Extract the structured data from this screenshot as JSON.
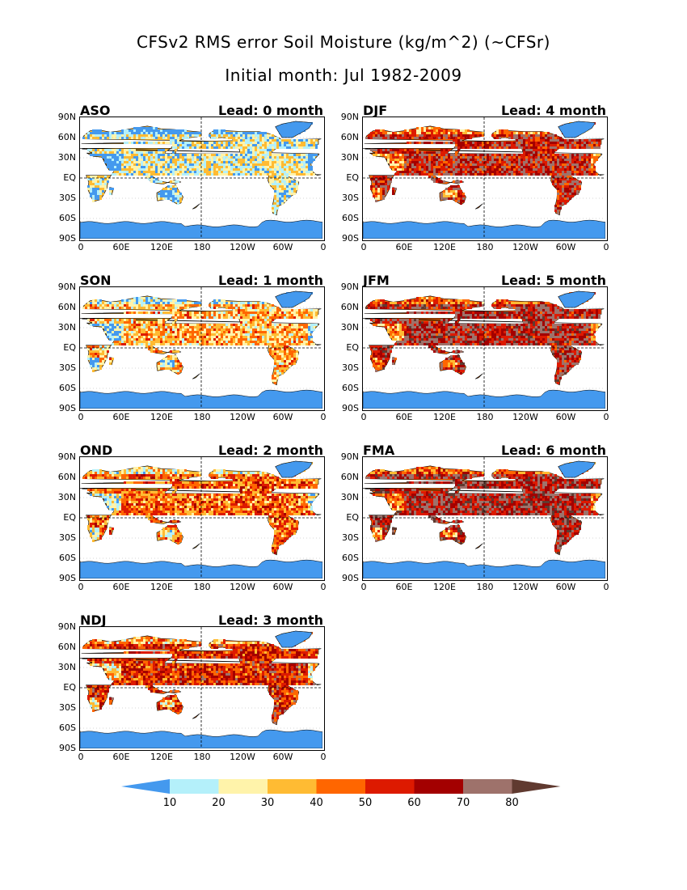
{
  "title_line1": "CFSv2 RMS error Soil Moisture (kg/m^2) (~CFSr)",
  "title_line2": "Initial month: Jul 1982-2009",
  "y_tick_labels": [
    "90N",
    "60N",
    "30N",
    "EQ",
    "30S",
    "60S",
    "90S"
  ],
  "x_tick_labels": [
    "0",
    "60E",
    "120E",
    "180",
    "120W",
    "60W",
    "0"
  ],
  "panels": [
    {
      "season": "ASO",
      "lead": "Lead: 0 month",
      "intensity": 0.05
    },
    {
      "season": "DJF",
      "lead": "Lead: 4 month",
      "intensity": 0.85
    },
    {
      "season": "SON",
      "lead": "Lead: 1 month",
      "intensity": 0.3
    },
    {
      "season": "JFM",
      "lead": "Lead: 5 month",
      "intensity": 0.92
    },
    {
      "season": "OND",
      "lead": "Lead: 2 month",
      "intensity": 0.5
    },
    {
      "season": "FMA",
      "lead": "Lead: 6 month",
      "intensity": 0.95
    },
    {
      "season": "NDJ",
      "lead": "Lead: 3 month",
      "intensity": 0.7
    }
  ],
  "colorbar": {
    "labels": [
      "10",
      "20",
      "30",
      "40",
      "50",
      "60",
      "70",
      "80"
    ],
    "colors": [
      "#4499ee",
      "#b4f0fa",
      "#fff3aa",
      "#ffbb33",
      "#ff6600",
      "#dd1a00",
      "#a30000",
      "#9e726b",
      "#603a30"
    ]
  },
  "colors": {
    "ocean": "#ffffff",
    "antarctica": "#4499ee"
  }
}
